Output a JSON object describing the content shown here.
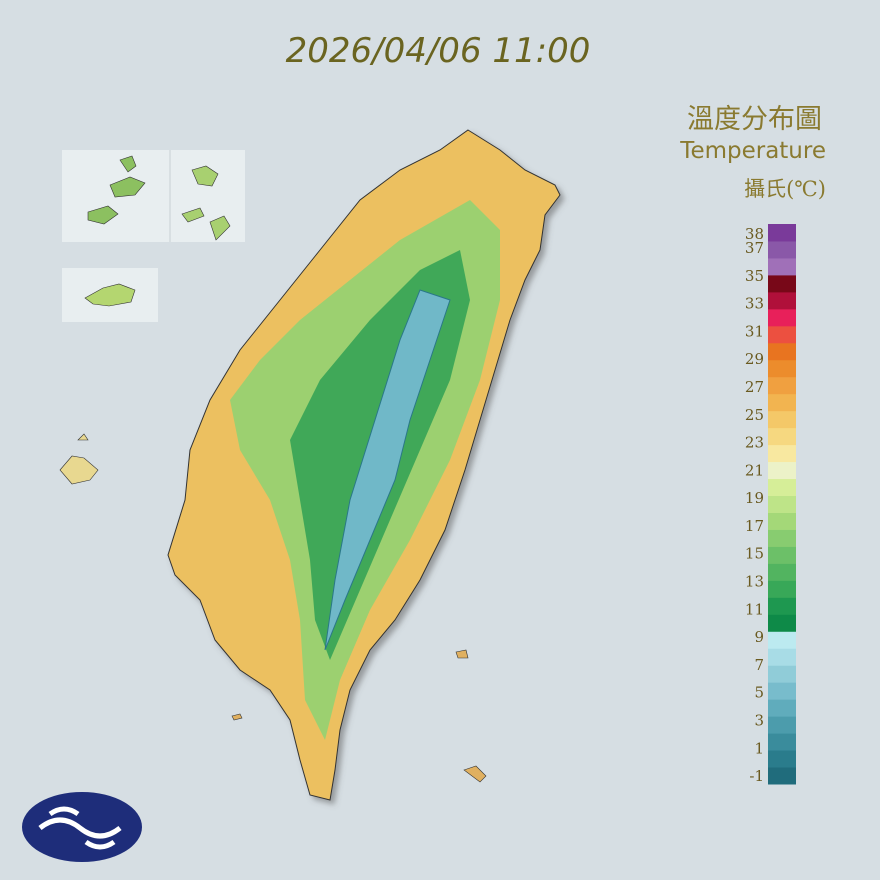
{
  "timestamp": "2026/04/06 11:00",
  "legend": {
    "title": "溫度分布圖",
    "subtitle": "Temperature",
    "unit": "攝氏(℃)",
    "ylim": [
      -1.5,
      38.8
    ],
    "ticks": [
      38,
      37,
      35,
      33,
      31,
      29,
      27,
      25,
      23,
      21,
      19,
      17,
      15,
      13,
      11,
      9,
      7,
      5,
      3,
      1,
      -1
    ],
    "colors": [
      "#206c7c",
      "#2a7c8c",
      "#3a8c9c",
      "#4c9cac",
      "#60acbc",
      "#78bccc",
      "#90ccd8",
      "#a8dce6",
      "#bceaf0",
      "#0e8a48",
      "#1e9850",
      "#38a858",
      "#52b460",
      "#6cc068",
      "#88cc70",
      "#a4d878",
      "#bee488",
      "#d6ee98",
      "#ecf2c8",
      "#f8e8a0",
      "#f6d880",
      "#f4c868",
      "#f2b450",
      "#f0a040",
      "#ec8c2c",
      "#e87420",
      "#ec5040",
      "#e8205a",
      "#b0103a",
      "#780818",
      "#a070b8",
      "#8a58a8",
      "#7a3a9a"
    ]
  }
}
